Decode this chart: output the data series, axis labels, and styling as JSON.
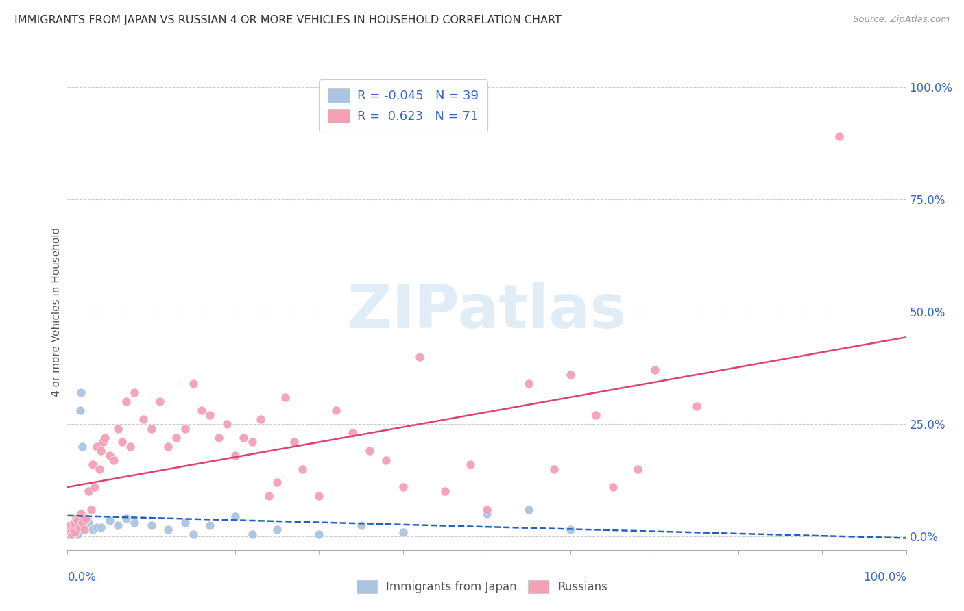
{
  "title": "IMMIGRANTS FROM JAPAN VS RUSSIAN 4 OR MORE VEHICLES IN HOUSEHOLD CORRELATION CHART",
  "source": "Source: ZipAtlas.com",
  "ylabel": "4 or more Vehicles in Household",
  "ytick_values": [
    0,
    25,
    50,
    75,
    100
  ],
  "xlim": [
    0,
    100
  ],
  "ylim": [
    -3,
    103
  ],
  "japan_R": -0.045,
  "japan_N": 39,
  "russian_R": 0.623,
  "russian_N": 71,
  "japan_color": "#aac4e2",
  "russian_color": "#f4a0b5",
  "japan_line_color": "#2060c0",
  "russian_line_color": "#e04070",
  "japan_x": [
    0.1,
    0.2,
    0.3,
    0.4,
    0.5,
    0.6,
    0.7,
    0.8,
    0.9,
    1.0,
    1.1,
    1.2,
    1.3,
    1.5,
    1.6,
    1.8,
    2.0,
    2.5,
    3.0,
    3.5,
    4.0,
    5.0,
    6.0,
    7.0,
    8.0,
    10.0,
    12.0,
    14.0,
    15.0,
    17.0,
    20.0,
    22.0,
    25.0,
    30.0,
    35.0,
    40.0,
    50.0,
    55.0,
    60.0
  ],
  "japan_y": [
    1.5,
    0.5,
    1.0,
    2.0,
    1.0,
    0.5,
    1.5,
    2.5,
    1.0,
    3.0,
    1.5,
    0.5,
    2.0,
    28.0,
    32.0,
    20.0,
    4.0,
    3.0,
    1.5,
    2.0,
    2.0,
    3.5,
    2.5,
    4.0,
    3.0,
    2.5,
    1.5,
    3.0,
    0.5,
    2.5,
    4.5,
    0.5,
    1.5,
    0.5,
    2.5,
    1.0,
    5.0,
    6.0,
    1.5
  ],
  "russian_x": [
    0.1,
    0.2,
    0.3,
    0.4,
    0.5,
    0.6,
    0.7,
    0.8,
    0.9,
    1.0,
    1.2,
    1.4,
    1.6,
    1.8,
    2.0,
    2.2,
    2.5,
    2.8,
    3.0,
    3.2,
    3.5,
    3.8,
    4.0,
    4.2,
    4.5,
    5.0,
    5.5,
    6.0,
    6.5,
    7.0,
    7.5,
    8.0,
    9.0,
    10.0,
    11.0,
    12.0,
    13.0,
    14.0,
    15.0,
    16.0,
    17.0,
    18.0,
    19.0,
    20.0,
    21.0,
    22.0,
    23.0,
    24.0,
    25.0,
    26.0,
    27.0,
    28.0,
    30.0,
    32.0,
    34.0,
    36.0,
    38.0,
    40.0,
    42.0,
    45.0,
    48.0,
    50.0,
    55.0,
    58.0,
    60.0,
    63.0,
    65.0,
    68.0,
    70.0,
    75.0,
    92.0
  ],
  "russian_y": [
    0.5,
    1.5,
    2.5,
    1.0,
    0.5,
    2.0,
    1.5,
    3.0,
    1.0,
    4.0,
    3.5,
    2.0,
    5.0,
    3.0,
    1.5,
    4.0,
    10.0,
    6.0,
    16.0,
    11.0,
    20.0,
    15.0,
    19.0,
    21.0,
    22.0,
    18.0,
    17.0,
    24.0,
    21.0,
    30.0,
    20.0,
    32.0,
    26.0,
    24.0,
    30.0,
    20.0,
    22.0,
    24.0,
    34.0,
    28.0,
    27.0,
    22.0,
    25.0,
    18.0,
    22.0,
    21.0,
    26.0,
    9.0,
    12.0,
    31.0,
    21.0,
    15.0,
    9.0,
    28.0,
    23.0,
    19.0,
    17.0,
    11.0,
    40.0,
    10.0,
    16.0,
    6.0,
    34.0,
    15.0,
    36.0,
    27.0,
    11.0,
    15.0,
    37.0,
    29.0,
    89.0
  ]
}
